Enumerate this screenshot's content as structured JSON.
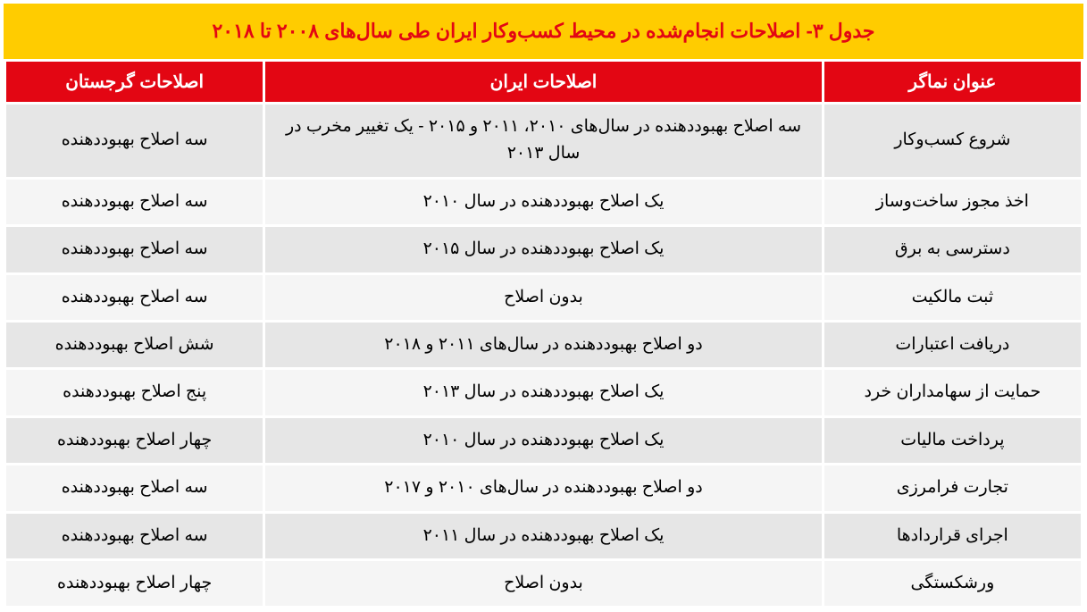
{
  "title": "جدول ۳- اصلاحات انجام‌شده در محیط کسب‌وکار ایران طی سال‌های ۲۰۰۸ تا ۲۰۱۸",
  "headers": {
    "indicator": "عنوان نماگر",
    "iran": "اصلاحات ایران",
    "georgia": "اصلاحات گرجستان"
  },
  "rows": [
    {
      "indicator": "شروع کسب‌وکار",
      "iran": "سه اصلاح بهبوددهنده در سال‌های ۲۰۱۰، ۲۰۱۱ و ۲۰۱۵ - یک تغییر مخرب در سال ۲۰۱۳",
      "georgia": "سه اصلاح بهبوددهنده"
    },
    {
      "indicator": "اخذ مجوز ساخت‌وساز",
      "iran": "یک اصلاح بهبوددهنده در سال ۲۰۱۰",
      "georgia": "سه اصلاح بهبوددهنده"
    },
    {
      "indicator": "دسترسی به برق",
      "iran": "یک اصلاح بهبوددهنده در سال ۲۰۱۵",
      "georgia": "سه اصلاح بهبوددهنده"
    },
    {
      "indicator": "ثبت مالکیت",
      "iran": "بدون اصلاح",
      "georgia": "سه اصلاح بهبوددهنده"
    },
    {
      "indicator": "دریافت اعتبارات",
      "iran": "دو اصلاح بهبوددهنده در سال‌های ۲۰۱۱ و ۲۰۱۸",
      "georgia": "شش اصلاح بهبوددهنده"
    },
    {
      "indicator": "حمایت از سهامداران خرد",
      "iran": "یک اصلاح بهبوددهنده در سال ۲۰۱۳",
      "georgia": "پنج اصلاح بهبوددهنده"
    },
    {
      "indicator": "پرداخت مالیات",
      "iran": "یک اصلاح بهبوددهنده در سال ۲۰۱۰",
      "georgia": "چهار اصلاح بهبوددهنده"
    },
    {
      "indicator": "تجارت فرامرزی",
      "iran": "دو اصلاح بهبوددهنده در سال‌های ۲۰۱۰ و ۲۰۱۷",
      "georgia": "سه اصلاح بهبوددهنده"
    },
    {
      "indicator": "اجرای قراردادها",
      "iran": "یک اصلاح بهبوددهنده در سال ۲۰۱۱",
      "georgia": "سه اصلاح بهبوددهنده"
    },
    {
      "indicator": "ورشکستگی",
      "iran": "بدون اصلاح",
      "georgia": "چهار اصلاح بهبوددهنده"
    }
  ],
  "styling": {
    "title_bg": "#ffcc00",
    "title_color": "#e30613",
    "header_bg": "#e30613",
    "header_color": "#ffffff",
    "row_odd_bg": "#e6e6e6",
    "row_even_bg": "#f5f5f5",
    "title_fontsize": 22,
    "header_fontsize": 20,
    "cell_fontsize": 19,
    "border_spacing": 3,
    "col_widths": {
      "indicator": "24%",
      "iran": "52%",
      "georgia": "24%"
    }
  }
}
